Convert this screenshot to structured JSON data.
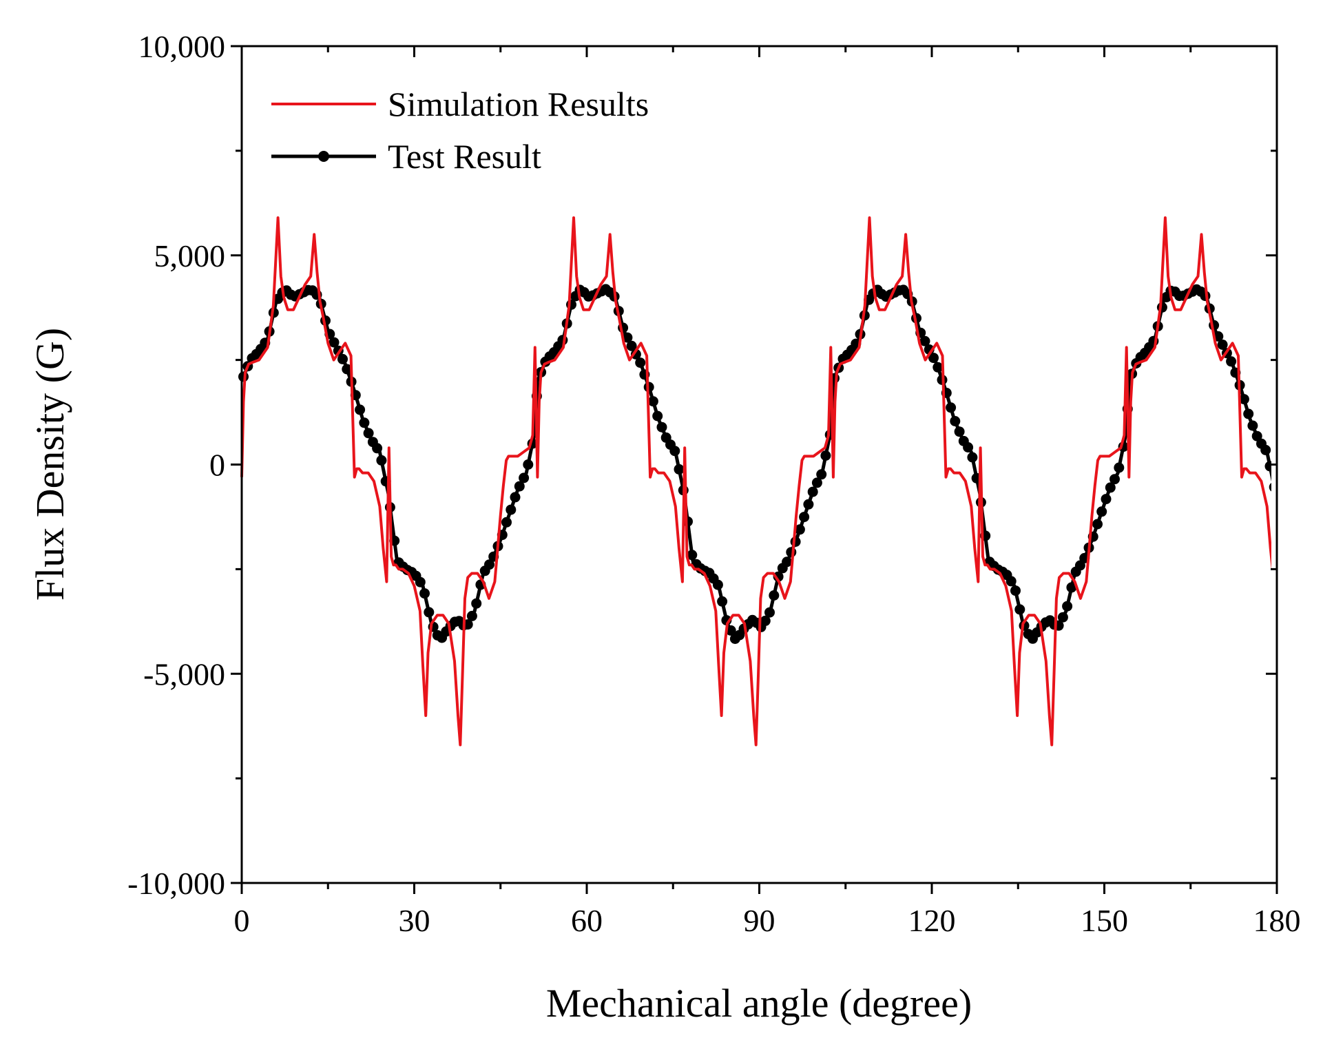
{
  "chart_data": {
    "type": "line",
    "title": "",
    "xlabel": "Mechanical angle (degree)",
    "ylabel": "Flux Density (G)",
    "xlim": [
      0,
      180
    ],
    "ylim": [
      -10000,
      10000
    ],
    "x_ticks": [
      0,
      30,
      60,
      90,
      120,
      150,
      180
    ],
    "x_tick_labels": [
      "0",
      "30",
      "60",
      "90",
      "120",
      "150",
      "180"
    ],
    "y_ticks": [
      -10000,
      -5000,
      0,
      5000,
      10000
    ],
    "y_tick_labels": [
      "-10,000",
      "-5,000",
      "0",
      "5,000",
      "10,000"
    ],
    "legend_position": "top-left",
    "colors": {
      "simulation": "#e8141b",
      "test": "#000000"
    },
    "series": [
      {
        "name": "Simulation Results",
        "color": "#e8141b",
        "marker": "none",
        "period": 51.43,
        "x": [
          0,
          0.3,
          0.6,
          1.2,
          2.0,
          3.0,
          4.5,
          5.5,
          6.3,
          6.8,
          7.3,
          8.0,
          9.0,
          10.0,
          11.0,
          12.0,
          12.6,
          13.1,
          13.6,
          14.2,
          15.0,
          16.0,
          17.0,
          18.0,
          19.0,
          19.6,
          20.0,
          20.4,
          21.0,
          22.0,
          23.0,
          24.0,
          24.6,
          25.2,
          25.6,
          26.0,
          26.4,
          26.8,
          27.3,
          28.0,
          29.0,
          30.0,
          31.0,
          31.5,
          32.0,
          32.4,
          33.0,
          34.0,
          35.0,
          36.0,
          37.0,
          37.6,
          38.0,
          38.4,
          38.8,
          39.3,
          40.0,
          41.0,
          42.0,
          43.0,
          44.0,
          44.5,
          45.0,
          45.5,
          46.0,
          46.4,
          47.0,
          48.0,
          49.0,
          50.0,
          50.6,
          51.0,
          51.43
        ],
        "y": [
          -300,
          1500,
          2200,
          2400,
          2450,
          2500,
          2800,
          3800,
          5900,
          4500,
          4000,
          3700,
          3700,
          4000,
          4300,
          4500,
          5500,
          4600,
          3900,
          3500,
          2900,
          2500,
          2700,
          2900,
          2600,
          -300,
          -100,
          -100,
          -200,
          -200,
          -400,
          -1000,
          -2000,
          -2800,
          400,
          -2200,
          -2400,
          -2400,
          -2500,
          -2500,
          -2600,
          -2900,
          -3500,
          -4800,
          -6000,
          -4500,
          -3800,
          -3600,
          -3600,
          -3800,
          -4700,
          -6000,
          -6700,
          -5000,
          -3200,
          -2700,
          -2600,
          -2600,
          -2800,
          -3200,
          -2800,
          -2000,
          -1200,
          -500,
          100,
          200,
          200,
          200,
          300,
          400,
          700,
          2800,
          -300
        ]
      },
      {
        "name": "Test Result",
        "color": "#000000",
        "marker": "circle",
        "period": 51.43,
        "x": [
          0,
          1.5,
          3,
          4.5,
          6,
          7.5,
          9,
          10.5,
          12,
          13.5,
          15,
          16.5,
          18,
          19.5,
          21,
          22.5,
          24,
          25.5,
          27,
          28.5,
          30,
          31.5,
          33,
          34.5,
          36,
          37.5,
          39,
          40.5,
          42,
          43.5,
          45,
          46.5,
          48,
          49.5,
          51,
          51.43
        ],
        "y": [
          2000,
          2500,
          2700,
          3000,
          3900,
          4200,
          4000,
          4100,
          4200,
          4000,
          3200,
          2800,
          2400,
          1800,
          1100,
          600,
          300,
          -700,
          -2300,
          -2500,
          -2600,
          -2900,
          -3800,
          -4200,
          -3900,
          -3700,
          -3900,
          -3500,
          -2600,
          -2300,
          -1800,
          -1200,
          -600,
          -200,
          800,
          2000
        ]
      }
    ]
  }
}
